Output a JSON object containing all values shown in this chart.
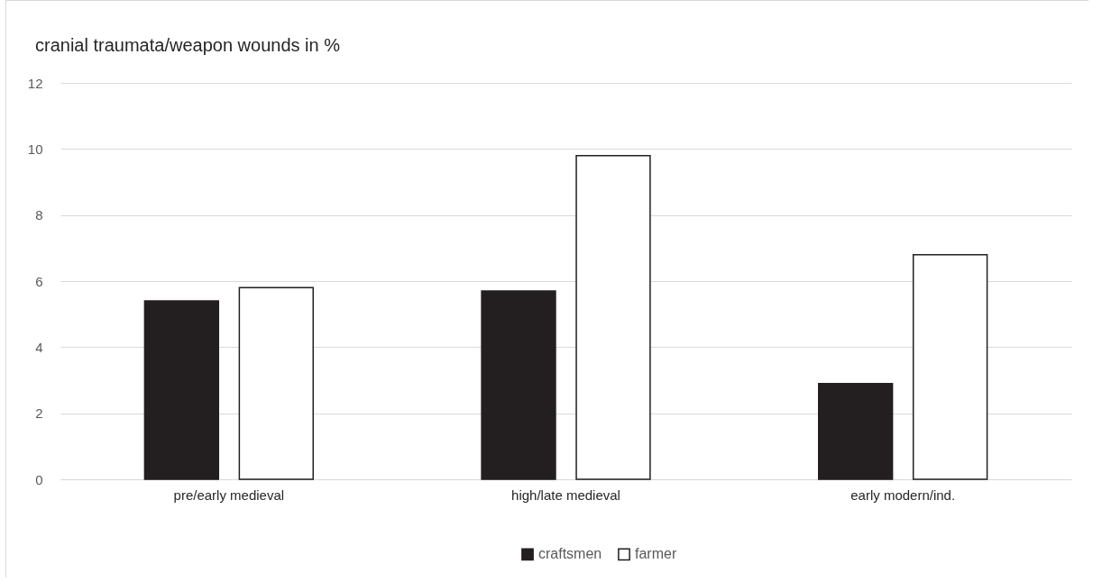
{
  "chart_data": {
    "type": "bar",
    "title": "cranial traumata/weapon wounds in %",
    "categories": [
      "pre/early medieval",
      "high/late medieval",
      "early modern/ind."
    ],
    "series": [
      {
        "name": "craftsmen",
        "color": "#231f20",
        "values": [
          5.4,
          5.7,
          2.9
        ]
      },
      {
        "name": "farmer",
        "color": "#ffffff",
        "values": [
          5.8,
          9.8,
          6.8
        ]
      }
    ],
    "ylim": [
      0,
      12
    ],
    "yticks": [
      0,
      2,
      4,
      6,
      8,
      10,
      12
    ],
    "grid": "y",
    "legend": "bottom"
  }
}
